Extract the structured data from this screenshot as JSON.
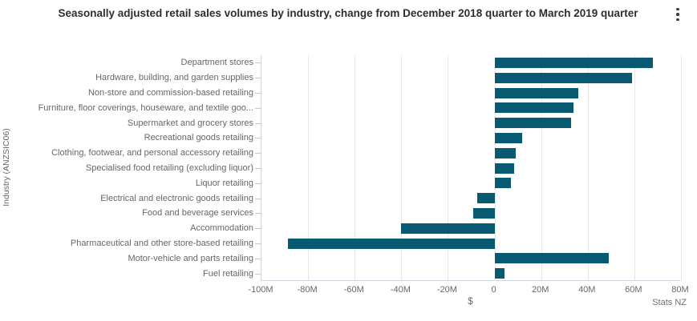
{
  "header": {
    "title": "Seasonally adjusted retail sales volumes by industry, change from December 2018 quarter to March 2019 quarter",
    "menu_icon": "kebab-vertical-dots"
  },
  "colors": {
    "bar": "#085a73",
    "gridline": "#e7e7e7",
    "axis_line": "#ccd5e0",
    "text_gray": "#63686c",
    "title_text": "#2e2e2e"
  },
  "chart_data": {
    "type": "bar",
    "orientation": "horizontal",
    "title": "Seasonally adjusted retail sales volumes by industry, change from December 2018 quarter to March 2019 quarter",
    "xlabel": "$",
    "ylabel": "Industry (ANZSIC06)",
    "source": "Stats NZ",
    "values_unit": "millions of dollars",
    "xlim_millions": [
      -100,
      80
    ],
    "grid": true,
    "legend": false,
    "x_tick_labels": [
      "-100M",
      "-80M",
      "-60M",
      "-40M",
      "-20M",
      "0",
      "20M",
      "40M",
      "60M",
      "80M"
    ],
    "x_tick_values_millions": [
      -100,
      -80,
      -60,
      -40,
      -20,
      0,
      20,
      40,
      60,
      80
    ],
    "categories": [
      "Department stores",
      "Hardware, building, and garden supplies",
      "Non-store and commission-based retailing",
      "Furniture, floor coverings, houseware, and textile goo...",
      "Supermarket and grocery stores",
      "Recreational goods retailing",
      "Clothing, footwear, and personal accessory retailing",
      "Specialised food retailing (excluding liquor)",
      "Liquor retailing",
      "Electrical and electronic goods retailing",
      "Food and beverage services",
      "Accommodation",
      "Pharmaceutical and other store-based retailing",
      "Motor-vehicle and parts retailing",
      "Fuel retailing"
    ],
    "values_millions": [
      68,
      59,
      36,
      34,
      33,
      12,
      9,
      8.5,
      7,
      -7.3,
      -9,
      -40,
      -88.5,
      49,
      4.3
    ]
  }
}
